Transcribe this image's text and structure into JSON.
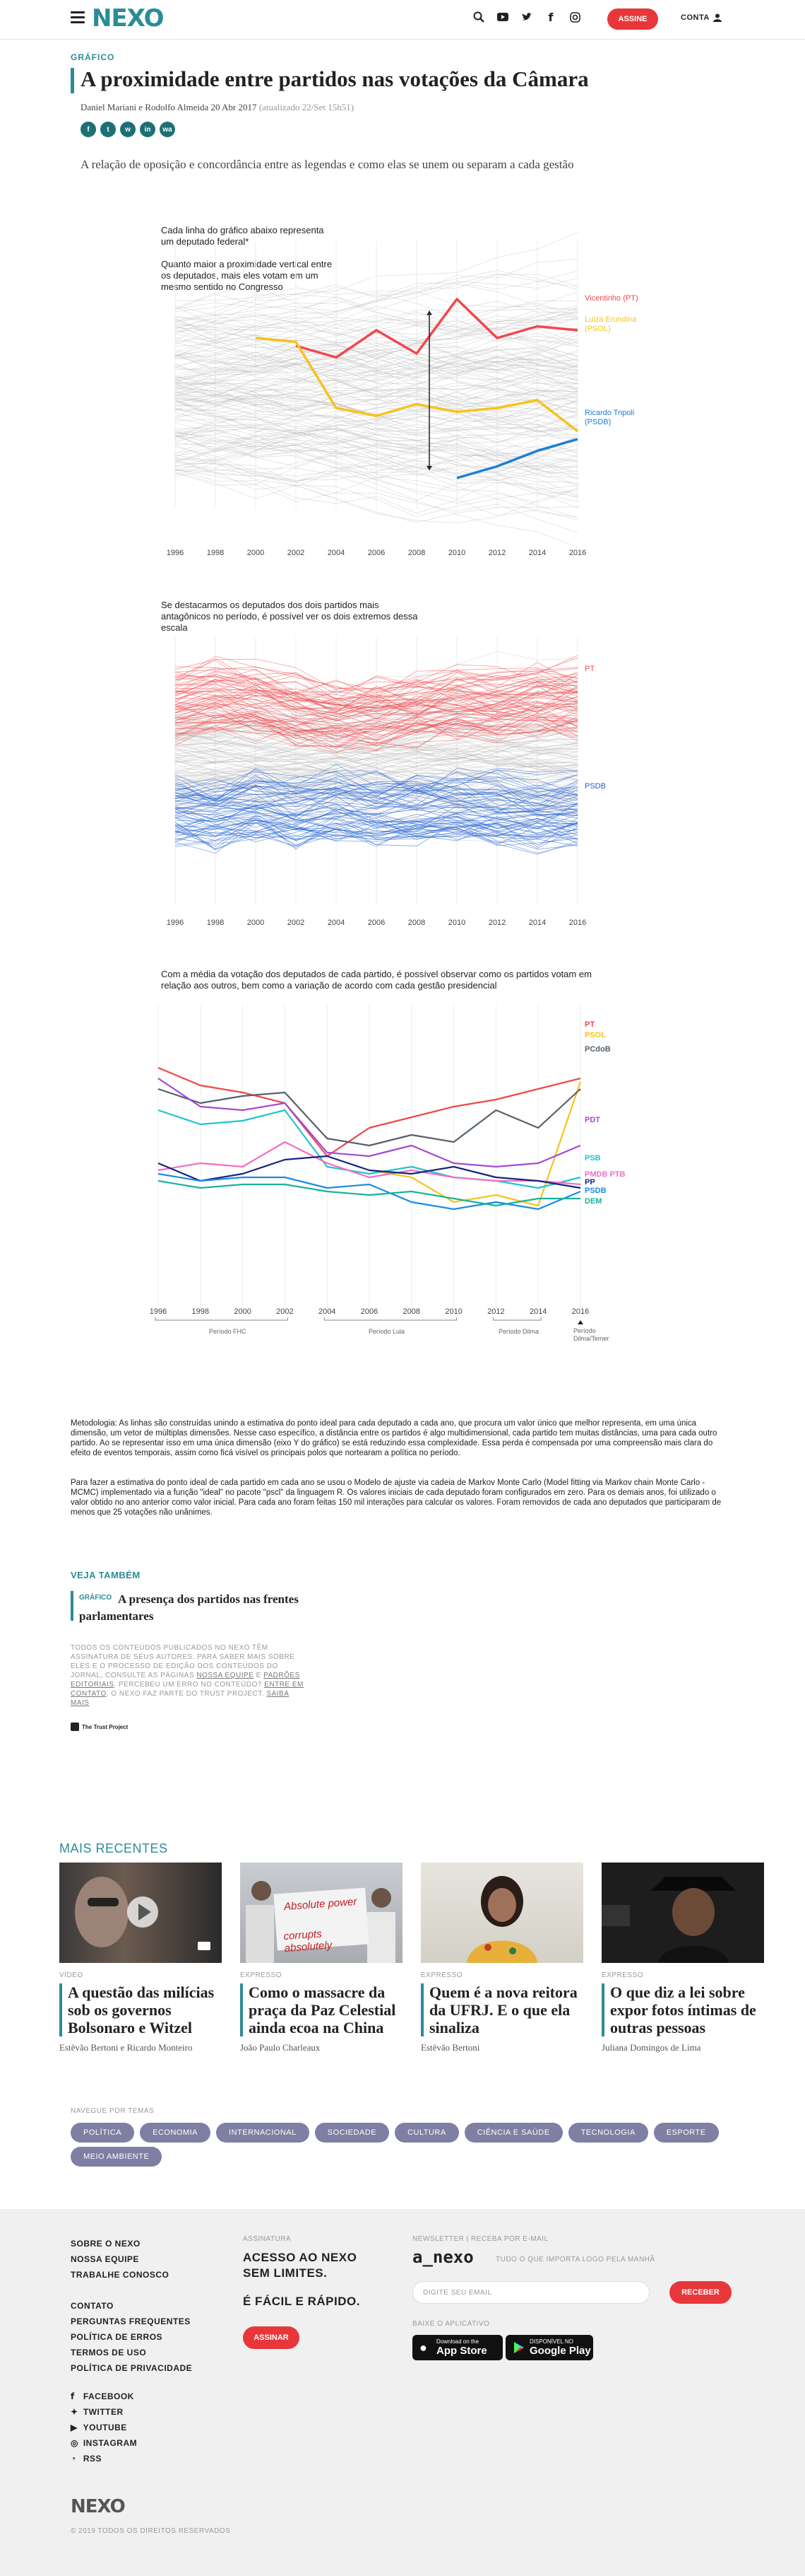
{
  "header": {
    "logo": "NEXO",
    "subscribe": "ASSINE",
    "account": "CONTA"
  },
  "article": {
    "kicker": "GRÁFICO",
    "title": "A proximidade entre partidos nas votações da Câmara",
    "authors": "Daniel Mariani e Rodolfo Almeida",
    "date": "20 Abr 2017",
    "updated": "(atualizado 22/Set 15h51)",
    "share": [
      "f",
      "t",
      "w",
      "in",
      "wa"
    ],
    "lede": "A relação de oposição e concordância entre as legendas e como elas se unem ou separam a cada gestão"
  },
  "chart1": {
    "ann1": "Cada linha do gráfico abaixo representa um deputado federal*",
    "ann2": "Quanto maior a proximidade vertical entre os deputados, mais eles votam em um mesmo sentido no Congresso",
    "lbl_a": "Vicentinho (PT)",
    "lbl_b": "Luiza Erundina (PSOL)",
    "lbl_c": "Ricardo Tripoli (PSDB)"
  },
  "chart2": {
    "ann": "Se destacarmos os deputados dos dois partidos mais antagônicos no período, é possível ver os dois extremos dessa escala",
    "lbl_pt": "PT",
    "lbl_psdb": "PSDB"
  },
  "chart3": {
    "ann": "Com a média da votação dos deputados de cada partido, é possível observar como os partidos votam em relação aos outros, bem como a variação de acordo com cada gestão presidencial",
    "periods": [
      "Período FHC",
      "Período Lula",
      "Período Dilma",
      "Período Dilma/Temer"
    ]
  },
  "chart_data": [
    {
      "type": "line",
      "x": [
        1996,
        1998,
        2000,
        2002,
        2004,
        2006,
        2008,
        2010,
        2012,
        2014,
        2016
      ],
      "series": [
        {
          "name": "Vicentinho (PT)",
          "color": "#f0474b",
          "values": [
            null,
            null,
            null,
            1.2,
            0.9,
            1.6,
            1.0,
            2.4,
            1.4,
            1.7,
            1.6
          ]
        },
        {
          "name": "Luiza Erundina (PSOL)",
          "color": "#f6c31c",
          "values": [
            null,
            null,
            1.4,
            1.3,
            -0.4,
            -0.6,
            -0.3,
            -0.5,
            -0.4,
            -0.2,
            -1.0
          ]
        },
        {
          "name": "Ricardo Tripoli (PSDB)",
          "color": "#1a7fd6",
          "values": [
            null,
            null,
            null,
            null,
            null,
            null,
            null,
            -2.2,
            -1.9,
            -1.5,
            -1.2
          ]
        }
      ]
    },
    {
      "type": "line",
      "x": [
        1996,
        1998,
        2000,
        2002,
        2004,
        2006,
        2008,
        2010,
        2012,
        2014,
        2016
      ],
      "series": [
        {
          "name": "PT",
          "color": "#f0474b",
          "values": [
            1.3,
            1.5,
            1.4,
            1.2,
            1.0,
            1.1,
            1.2,
            1.3,
            1.3,
            1.4,
            1.4
          ]
        },
        {
          "name": "PSDB",
          "color": "#1f5ed1",
          "values": [
            -1.4,
            -1.5,
            -1.3,
            -1.5,
            -1.3,
            -1.4,
            -1.4,
            -1.3,
            -1.4,
            -1.5,
            -1.4
          ]
        }
      ]
    },
    {
      "type": "line",
      "x": [
        1996,
        1998,
        2000,
        2002,
        2004,
        2006,
        2008,
        2010,
        2012,
        2014,
        2016
      ],
      "ylim": [
        -2.5,
        2.5
      ],
      "series": [
        {
          "name": "PT",
          "color": "#f0474b",
          "values": [
            2.2,
            1.7,
            1.5,
            1.2,
            -0.3,
            0.5,
            0.8,
            1.1,
            1.3,
            1.6,
            1.9
          ]
        },
        {
          "name": "PSOL",
          "color": "#f6c31c",
          "values": [
            null,
            null,
            null,
            null,
            null,
            -0.7,
            -0.9,
            -1.6,
            -1.4,
            -1.7,
            1.8
          ]
        },
        {
          "name": "PCdoB",
          "color": "#55616b",
          "values": [
            1.6,
            1.2,
            1.4,
            1.5,
            0.2,
            0.0,
            0.3,
            0.1,
            1.0,
            0.5,
            1.6
          ]
        },
        {
          "name": "PDT",
          "color": "#a44ad4",
          "values": [
            1.9,
            1.1,
            1.0,
            1.2,
            -0.2,
            -0.3,
            0.0,
            -0.5,
            -0.6,
            -0.5,
            0.0
          ]
        },
        {
          "name": "PSB",
          "color": "#20c4cf",
          "values": [
            1.0,
            0.6,
            0.7,
            1.0,
            -0.6,
            -0.8,
            -0.6,
            -0.9,
            -1.0,
            -1.2,
            -0.9
          ]
        },
        {
          "name": "PMDB PTB",
          "color": "#f06fc6",
          "values": [
            -0.7,
            -0.5,
            -0.6,
            0.1,
            -0.5,
            -0.9,
            -0.7,
            -0.9,
            -1.0,
            -1.0,
            -1.1
          ]
        },
        {
          "name": "PP",
          "color": "#16257c",
          "values": [
            -0.5,
            -1.0,
            -0.8,
            -0.4,
            -0.3,
            -0.7,
            -0.8,
            -0.6,
            -0.9,
            -1.0,
            -1.2
          ]
        },
        {
          "name": "PSDB",
          "color": "#1a8be8",
          "values": [
            -0.8,
            -1.0,
            -0.9,
            -0.9,
            -1.2,
            -1.1,
            -1.6,
            -1.8,
            -1.6,
            -1.8,
            -1.3
          ]
        },
        {
          "name": "DEM",
          "color": "#18b39c",
          "values": [
            -1.0,
            -1.2,
            -1.1,
            -1.1,
            -1.3,
            -1.4,
            -1.3,
            -1.5,
            -1.7,
            -1.5,
            -1.5
          ]
        }
      ]
    }
  ],
  "methodology": [
    "Metodologia: As linhas são construídas unindo a estimativa do ponto ideal para cada deputado a cada ano, que procura um valor único que melhor representa, em uma única dimensão, um vetor de múltiplas dimensões. Nesse caso específico, a distância entre os partidos é algo multidimensional, cada partido tem muitas distâncias, uma para cada outro partido. Ao se representar isso em uma única dimensão (eixo Y do gráfico) se está reduzindo essa complexidade. Essa perda é compensada por uma compreensão mais clara do efeito de eventos temporais, assim como ficá visível os principais polos que nortearam a política no período.",
    "Para fazer a estimativa do ponto ideal de cada partido em cada ano se usou o Modelo de ajuste via cadeia de Markov Monte Carlo (Model fitting via Markov chain Monte Carlo - MCMC) implementado via a função \"ideal\" no pacote \"pscl\" da linguagem R. Os valores iniciais de cada deputado foram configurados em zero. Para os demais anos, foi utilizado o valor obtido no ano anterior como valor inicial. Para cada ano foram feitas 150 mil interações para calcular os valores. Foram removidos de cada ano deputados que participaram de menos que 25 votações não unânimes."
  ],
  "related": {
    "heading": "VEJA TAMBÉM",
    "kicker": "GRÁFICO",
    "title": "A presença dos partidos nas frentes parlamentares"
  },
  "legal": {
    "text1": "TODOS OS CONTEÚDOS PUBLICADOS NO NEXO TÊM ASSINATURA DE SEUS AUTORES. PARA SABER MAIS SOBRE ELES E O PROCESSO DE EDIÇÃO DOS CONTEÚDOS DO JORNAL, CONSULTE AS PÁGINAS",
    "link1": "NOSSA EQUIPE",
    "and": "E",
    "link2": "PADRÕES EDITORIAIS",
    "text2": ". PERCEBEU UM ERRO NO CONTEÚDO?",
    "link3": "ENTRE EM CONTATO",
    "text3": ". O NEXO FAZ PARTE DO TRUST PROJECT.",
    "link4": "SAIBA MAIS",
    "trust": "The Trust Project"
  },
  "recent": {
    "heading": "MAIS RECENTES",
    "cards": [
      {
        "cat": "VÍDEO",
        "title": "A questão das milícias sob os governos Bolsonaro e Witzel",
        "author": "Estêvão Bertoni e Ricardo Monteiro"
      },
      {
        "cat": "EXPRESSO",
        "title": "Como o massacre da praça da Paz Celestial ainda ecoa na China",
        "author": "João Paulo Charleaux",
        "sign1": "Absolute power",
        "sign2": "corrupts absolutely"
      },
      {
        "cat": "EXPRESSO",
        "title": "Quem é a nova reitora da UFRJ. E o que ela sinaliza",
        "author": "Estêvão Bertoni"
      },
      {
        "cat": "EXPRESSO",
        "title": "O que diz a lei sobre expor fotos íntimas de outras pessoas",
        "author": "Juliana Domingos de Lima"
      }
    ]
  },
  "topics": {
    "heading": "NAVEGUE POR TEMAS",
    "items": [
      "POLÍTICA",
      "ECONOMIA",
      "INTERNACIONAL",
      "SOCIEDADE",
      "CULTURA",
      "CIÊNCIA E SAÚDE",
      "TECNOLOGIA",
      "ESPORTE",
      "MEIO AMBIENTE"
    ]
  },
  "footer": {
    "col1a": [
      "SOBRE O NEXO",
      "NOSSA EQUIPE",
      "TRABALHE CONOSCO"
    ],
    "col1b": [
      "CONTATO",
      "PERGUNTAS FREQUENTES",
      "POLÍTICA DE ERROS",
      "TERMOS DE USO",
      "POLÍTICA DE PRIVACIDADE"
    ],
    "social": [
      "FACEBOOK",
      "TWITTER",
      "YOUTUBE",
      "INSTAGRAM",
      "RSS"
    ],
    "sub_label": "ASSINATURA",
    "sub_line1": "ACESSO AO NEXO SEM LIMITES.",
    "sub_line2": "É FÁCIL E RÁPIDO.",
    "sub_btn": "ASSINAR",
    "news_label": "NEWSLETTER | RECEBA POR E-MAIL",
    "anexo": "a_nexo",
    "anexo_tag": "TUDO O QUE IMPORTA LOGO PELA MANHÃ",
    "email_ph": "DIGITE SEU EMAIL",
    "news_btn": "RECEBER",
    "app_label": "BAIXE O APLICATIVO",
    "appstore_a": "Download on the",
    "appstore_b": "App Store",
    "gplay_a": "DISPONÍVEL NO",
    "gplay_b": "Google Play",
    "logo": "NEXO",
    "copyright": "© 2019 TODOS OS DIREITOS RESERVADOS"
  }
}
